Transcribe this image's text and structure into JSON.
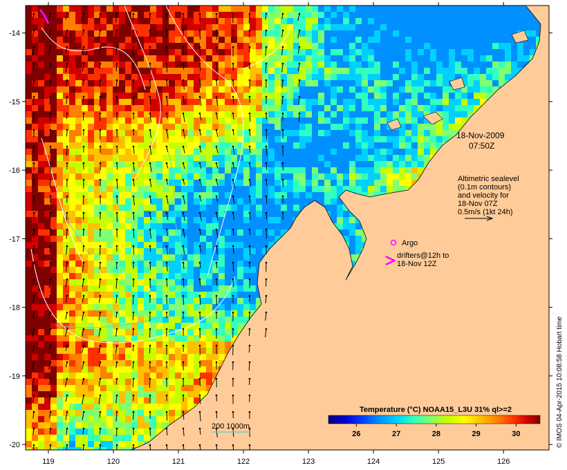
{
  "map": {
    "lon_ticks": [
      119,
      120,
      121,
      122,
      123,
      124,
      125,
      126
    ],
    "lat_ticks": [
      -14,
      -15,
      -16,
      -17,
      -18,
      -19,
      -20
    ],
    "lon_range": [
      118.65,
      126.7
    ],
    "lat_range": [
      -13.6,
      -20.08
    ],
    "land_color": "#ffcc99",
    "contour_color": "#ffffff",
    "isobath_color": "#66cccc",
    "vector_color": "#000000",
    "drifter_color": "#ff00ff"
  },
  "annotations": {
    "date": "18-Nov-2009",
    "time": "07:50Z",
    "legend_line1": "Altimetric sealevel",
    "legend_line2": "(0.1m contours)",
    "legend_line3": "and velocity for",
    "legend_line4": "18-Nov 07Z",
    "legend_line5": "0.5m/s (1kt 24h)",
    "argo_label": "Argo",
    "drifter_line1": "drifters@12h to",
    "drifter_line2": "18-Nov 12Z",
    "isobath_label": "200  1000m"
  },
  "colorbar": {
    "title": "Temperature (°C) NOAA15_L3U 31% ql>=2",
    "ticks": [
      26,
      27,
      28,
      29,
      30
    ],
    "range": [
      25.3,
      30.6
    ],
    "colors": [
      "#00007f",
      "#0000d0",
      "#0040ff",
      "#0090ff",
      "#00d0ff",
      "#30ffc0",
      "#80ff70",
      "#c8ff00",
      "#ffff00",
      "#ffc000",
      "#ff8000",
      "#ff3000",
      "#d00000",
      "#800000"
    ]
  },
  "credit": "© IMOS 04-Apr-2015 10:08:58 Hobart time"
}
